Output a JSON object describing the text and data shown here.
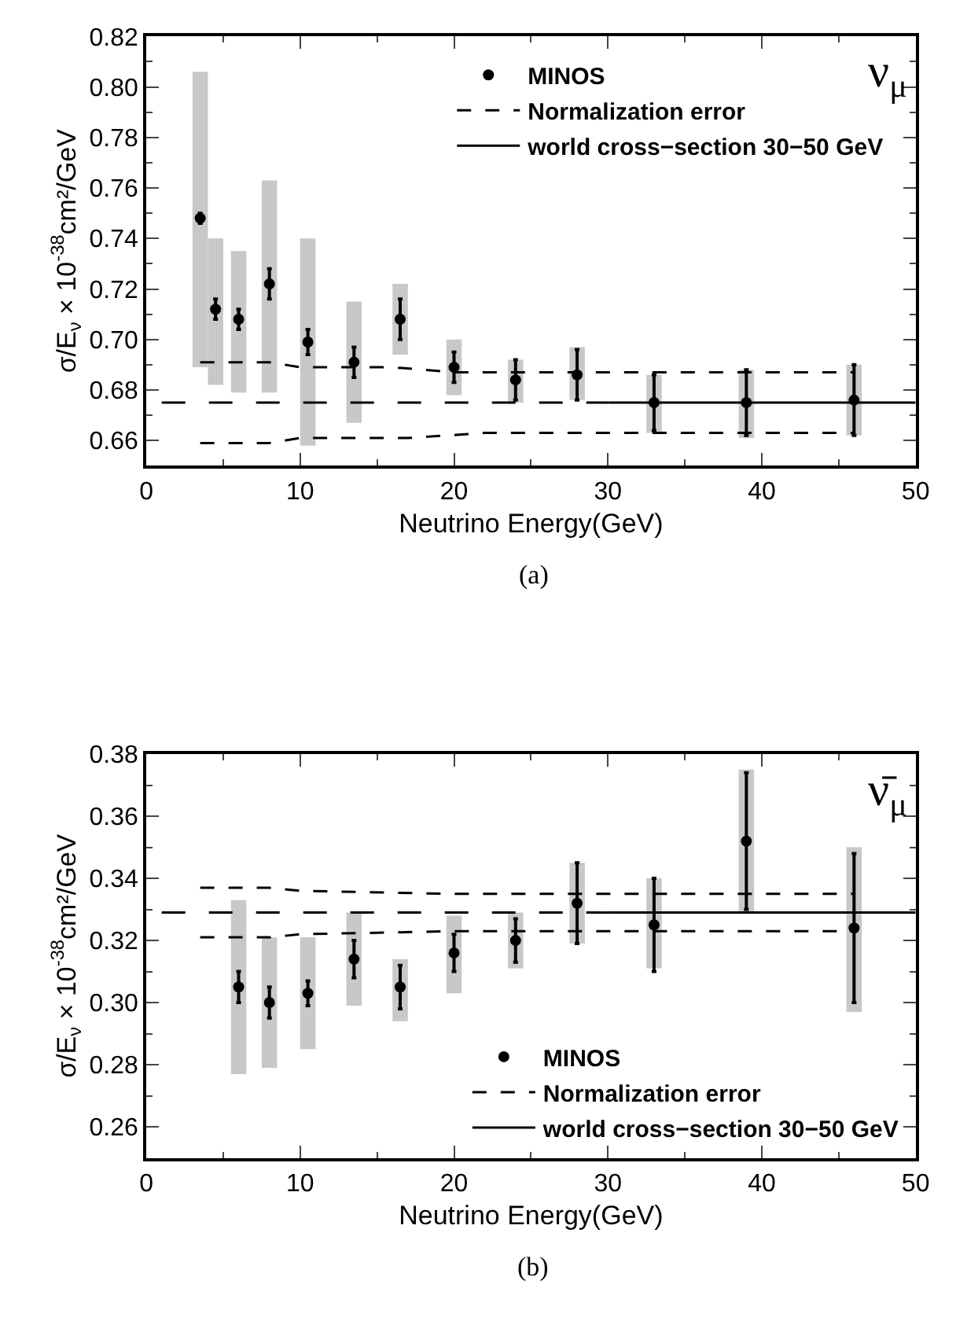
{
  "chart_data": [
    {
      "type": "scatter",
      "xlabel": "Neutrino Energy(GeV)",
      "ylabel": "σ/E$_{ν}$ × 10$^{-38}$cm²/GeV",
      "xlim": [
        0,
        50
      ],
      "xticks": [
        0,
        10,
        20,
        30,
        40,
        50
      ],
      "ylim": [
        0.65,
        0.82
      ],
      "yticks": [
        0.66,
        0.68,
        {
          "value": 0.7,
          "label": "0.70"
        },
        0.72,
        0.74,
        0.76,
        0.78,
        {
          "value": 0.8,
          "label": "0.80"
        },
        0.82
      ],
      "legend": "top right",
      "annotations": [
        "ν$_{μ}$",
        "(a)"
      ],
      "series": [
        {
          "type": "bar",
          "color": "#c8c8c8",
          "x": [
            3.5,
            4.5,
            6,
            8,
            10.5,
            13.5,
            16.5,
            20,
            24,
            28,
            33,
            39,
            46
          ],
          "base": [
            0.689,
            0.682,
            0.679,
            0.679,
            0.658,
            0.667,
            0.694,
            0.678,
            0.675,
            0.676,
            0.663,
            0.661,
            0.662
          ],
          "values": [
            0.117,
            0.058,
            0.056,
            0.084,
            0.082,
            0.048,
            0.028,
            0.022,
            0.017,
            0.021,
            0.023,
            0.027,
            0.028
          ]
        },
        {
          "name": "MINOS",
          "color": "#000000",
          "marker": "circle",
          "x": [
            3.5,
            4.5,
            6,
            8,
            10.5,
            13.5,
            16.5,
            20,
            24,
            28,
            33,
            39,
            46
          ],
          "values": [
            0.748,
            0.712,
            0.708,
            0.722,
            0.699,
            0.691,
            0.708,
            0.689,
            0.684,
            0.686,
            0.675,
            0.675,
            0.676
          ],
          "errors": [
            0.002,
            0.004,
            0.004,
            0.006,
            0.005,
            0.006,
            0.008,
            0.006,
            0.008,
            0.01,
            0.011,
            0.013,
            0.014
          ]
        },
        {
          "type": "line",
          "name": "Normalization error",
          "color": "#000000",
          "line_style": "dotted",
          "x": [
            3.5,
            8,
            10,
            16,
            20,
            46
          ],
          "values": [
            0.691,
            0.691,
            0.689,
            0.689,
            0.687,
            0.687
          ]
        },
        {
          "type": "line",
          "color": "#000000",
          "line_style": "dotted",
          "x": [
            3.5,
            8,
            10,
            17,
            22,
            46
          ],
          "values": [
            0.659,
            0.659,
            0.661,
            0.661,
            0.663,
            0.663
          ]
        },
        {
          "type": "line",
          "color": "#000000",
          "line_style": "dashed",
          "x": [
            1,
            30
          ],
          "values": [
            0.675,
            0.675
          ]
        },
        {
          "type": "line",
          "name": "world cross−section 30−50 GeV",
          "color": "#000000",
          "line_style": "solid",
          "x": [
            30,
            50
          ],
          "values": [
            0.675,
            0.675
          ]
        }
      ]
    },
    {
      "type": "scatter",
      "xlabel": "Neutrino Energy(GeV)",
      "ylabel": "σ/E$_{ν}$ × 10$^{-38}$cm²/GeV",
      "xlim": [
        0,
        50
      ],
      "xticks": [
        0,
        10,
        20,
        30,
        40,
        50
      ],
      "ylim": [
        0.25,
        0.38
      ],
      "yticks": [
        0.26,
        0.28,
        {
          "value": 0.3,
          "label": "0.30"
        },
        0.32,
        0.34,
        0.36,
        0.38
      ],
      "legend": "bottom right",
      "annotations": [
        "ν̄$_{μ}$",
        "(b)"
      ],
      "series": [
        {
          "type": "bar",
          "color": "#c8c8c8",
          "x": [
            6,
            8,
            10.5,
            13.5,
            16.5,
            20,
            24,
            28,
            33,
            39,
            46
          ],
          "base": [
            0.277,
            0.279,
            0.285,
            0.299,
            0.294,
            0.303,
            0.311,
            0.319,
            0.311,
            0.329,
            0.297
          ],
          "values": [
            0.056,
            0.042,
            0.036,
            0.03,
            0.02,
            0.025,
            0.018,
            0.026,
            0.029,
            0.046,
            0.053
          ]
        },
        {
          "name": "MINOS",
          "color": "#000000",
          "marker": "circle",
          "x": [
            6,
            8,
            10.5,
            13.5,
            16.5,
            20,
            24,
            28,
            33,
            39,
            46
          ],
          "values": [
            0.305,
            0.3,
            0.303,
            0.314,
            0.305,
            0.316,
            0.32,
            0.332,
            0.325,
            0.352,
            0.324
          ],
          "errors": [
            0.005,
            0.005,
            0.004,
            0.006,
            0.007,
            0.006,
            0.007,
            0.013,
            0.015,
            0.022,
            0.024
          ]
        },
        {
          "type": "line",
          "name": "Normalization error",
          "color": "#000000",
          "line_style": "dotted",
          "x": [
            3.5,
            8,
            10,
            20,
            46
          ],
          "values": [
            0.337,
            0.337,
            0.336,
            0.335,
            0.335
          ]
        },
        {
          "type": "line",
          "color": "#000000",
          "line_style": "dotted",
          "x": [
            3.5,
            8,
            10,
            20,
            46
          ],
          "values": [
            0.321,
            0.321,
            0.322,
            0.323,
            0.323
          ]
        },
        {
          "type": "line",
          "color": "#000000",
          "line_style": "dashed",
          "x": [
            1,
            30
          ],
          "values": [
            0.329,
            0.329
          ]
        },
        {
          "type": "line",
          "name": "world cross−section 30−50 GeV",
          "color": "#000000",
          "line_style": "solid",
          "x": [
            30,
            50
          ],
          "values": [
            0.329,
            0.329
          ]
        }
      ]
    }
  ]
}
